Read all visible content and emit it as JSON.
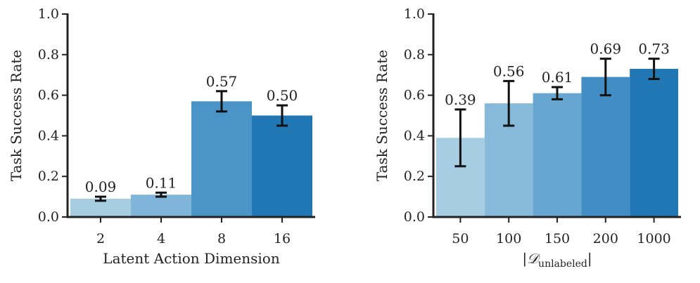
{
  "chart_data": [
    {
      "type": "bar",
      "categories": [
        "2",
        "4",
        "8",
        "16"
      ],
      "values": [
        0.09,
        0.11,
        0.57,
        0.5
      ],
      "value_labels": [
        "0.09",
        "0.11",
        "0.57",
        "0.50"
      ],
      "error_low": [
        0.08,
        0.1,
        0.52,
        0.45
      ],
      "error_high": [
        0.1,
        0.12,
        0.62,
        0.55
      ],
      "colors": [
        "#a6cde2",
        "#7fb5d8",
        "#4b94c8",
        "#2077b4"
      ],
      "xlabel": "Latent Action Dimension",
      "xlabel_main": "",
      "xlabel_sub": "",
      "ylabel": "Task Success Rate",
      "ylim": [
        0,
        1.0
      ],
      "yticks": [
        "0.0",
        "0.2",
        "0.4",
        "0.6",
        "0.8",
        "1.0"
      ],
      "grid": false
    },
    {
      "type": "bar",
      "categories": [
        "50",
        "100",
        "150",
        "200",
        "1000"
      ],
      "values": [
        0.39,
        0.56,
        0.61,
        0.69,
        0.73
      ],
      "value_labels": [
        "0.39",
        "0.56",
        "0.61",
        "0.69",
        "0.73"
      ],
      "error_low": [
        0.25,
        0.45,
        0.58,
        0.6,
        0.68
      ],
      "error_high": [
        0.53,
        0.67,
        0.64,
        0.78,
        0.78
      ],
      "colors": [
        "#a6cde2",
        "#86b9da",
        "#66a6d0",
        "#428ec4",
        "#2077b4"
      ],
      "xlabel": "",
      "xlabel_main": "|𝒟",
      "xlabel_sub": "unlabeled",
      "xlabel_end": "|",
      "ylabel": "Task Success Rate",
      "ylim": [
        0,
        1.0
      ],
      "yticks": [
        "0.0",
        "0.2",
        "0.4",
        "0.6",
        "0.8",
        "1.0"
      ],
      "grid": false
    }
  ]
}
